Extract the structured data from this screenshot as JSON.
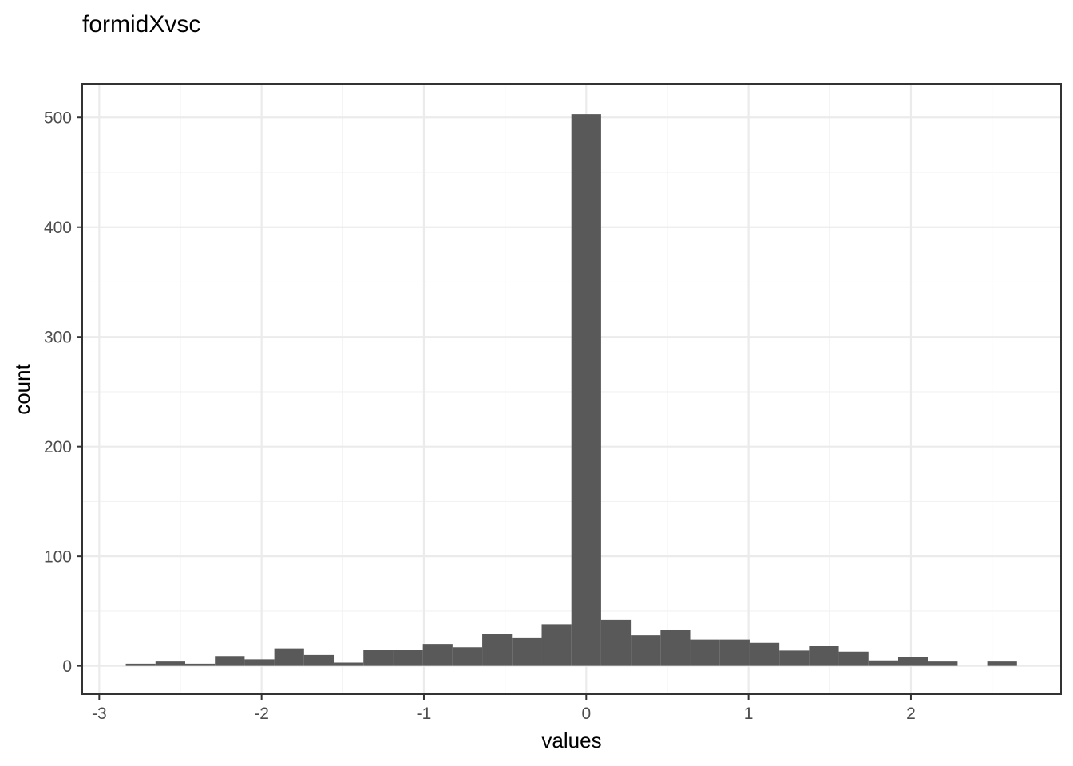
{
  "chart_data": {
    "type": "bar",
    "title": "formidXvsc",
    "xlabel": "values",
    "ylabel": "count",
    "xlim": [
      -3.1,
      2.92
    ],
    "ylim": [
      -25,
      530
    ],
    "x_ticks": [
      -3,
      -2,
      -1,
      0,
      1,
      2
    ],
    "y_ticks": [
      0,
      100,
      200,
      300,
      400,
      500
    ],
    "x_tick_labels": [
      "-3",
      "-2",
      "-1",
      "0",
      "1",
      "2"
    ],
    "y_tick_labels": [
      "0",
      "100",
      "200",
      "300",
      "400",
      "500"
    ],
    "grid": true,
    "bar_color": "#595959",
    "bin_width": 0.183,
    "bins": [
      {
        "x": -2.745,
        "count": 2
      },
      {
        "x": -2.562,
        "count": 4
      },
      {
        "x": -2.379,
        "count": 2
      },
      {
        "x": -2.196,
        "count": 9
      },
      {
        "x": -2.013,
        "count": 6
      },
      {
        "x": -1.83,
        "count": 16
      },
      {
        "x": -1.647,
        "count": 10
      },
      {
        "x": -1.464,
        "count": 3
      },
      {
        "x": -1.281,
        "count": 15
      },
      {
        "x": -1.098,
        "count": 15
      },
      {
        "x": -0.915,
        "count": 20
      },
      {
        "x": -0.732,
        "count": 17
      },
      {
        "x": -0.549,
        "count": 29
      },
      {
        "x": -0.366,
        "count": 26
      },
      {
        "x": -0.183,
        "count": 38
      },
      {
        "x": 0.0,
        "count": 503
      },
      {
        "x": 0.183,
        "count": 42
      },
      {
        "x": 0.366,
        "count": 28
      },
      {
        "x": 0.549,
        "count": 33
      },
      {
        "x": 0.732,
        "count": 24
      },
      {
        "x": 0.915,
        "count": 24
      },
      {
        "x": 1.098,
        "count": 21
      },
      {
        "x": 1.281,
        "count": 14
      },
      {
        "x": 1.464,
        "count": 18
      },
      {
        "x": 1.647,
        "count": 13
      },
      {
        "x": 1.83,
        "count": 5
      },
      {
        "x": 2.013,
        "count": 8
      },
      {
        "x": 2.196,
        "count": 4
      },
      {
        "x": 2.379,
        "count": 0
      },
      {
        "x": 2.562,
        "count": 4
      }
    ]
  }
}
